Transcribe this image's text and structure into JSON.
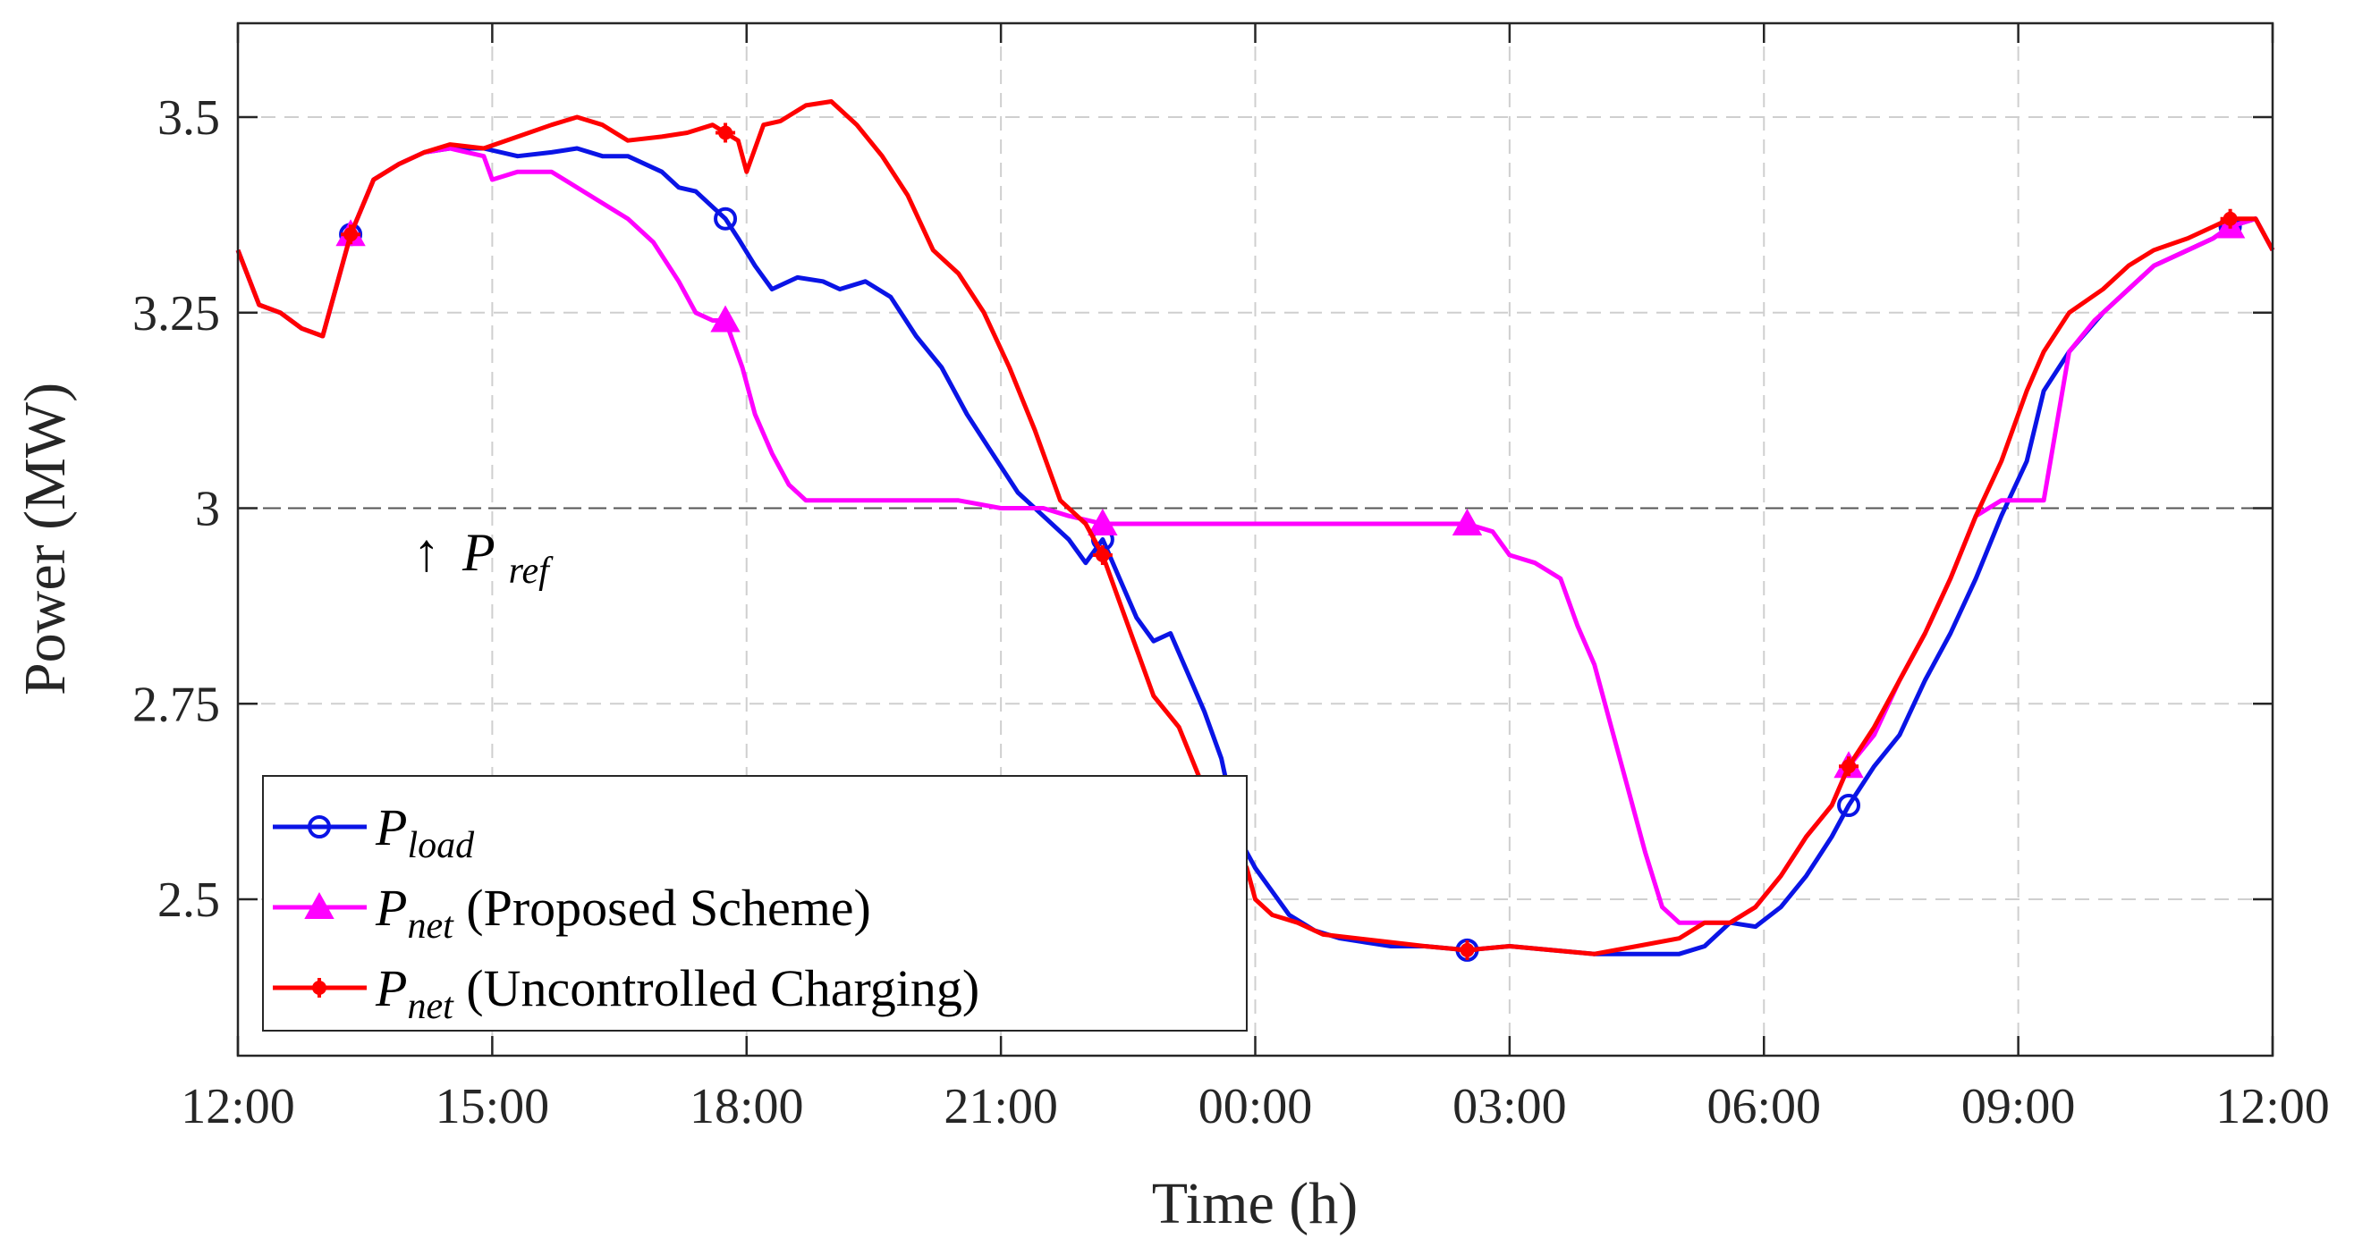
{
  "chart_data": {
    "type": "line",
    "title": "",
    "xlabel": "Time (h)",
    "ylabel": "Power (MW)",
    "xlim": [
      0,
      24
    ],
    "ylim": [
      2.3,
      3.62
    ],
    "x_ticks": [
      0,
      3,
      6,
      9,
      12,
      15,
      18,
      21,
      24
    ],
    "x_tick_labels": [
      "12:00",
      "15:00",
      "18:00",
      "21:00",
      "00:00",
      "03:00",
      "06:00",
      "09:00",
      "12:00"
    ],
    "y_ticks": [
      2.5,
      2.75,
      3,
      3.25,
      3.5
    ],
    "y_tick_labels": [
      "2.5",
      "2.75",
      "3",
      "3.25",
      "3.5"
    ],
    "grid": true,
    "legend_position": "bottom-left",
    "reference_line": {
      "y": 3.0,
      "label_arrow": "↑",
      "label_main": "P",
      "label_sub": "ref"
    },
    "series": [
      {
        "name": "P_load",
        "legend_main": "P",
        "legend_sub": "load",
        "legend_suffix": "",
        "color": "#0a14e6",
        "marker": "circle",
        "marker_x": [
          1.33,
          5.75,
          10.2,
          14.5,
          19.0,
          23.5
        ],
        "x": [
          0,
          0.25,
          0.5,
          0.75,
          1.0,
          1.33,
          1.6,
          1.9,
          2.2,
          2.5,
          2.9,
          3.3,
          3.7,
          4.0,
          4.3,
          4.6,
          5.0,
          5.2,
          5.4,
          5.6,
          5.75,
          5.9,
          6.1,
          6.3,
          6.6,
          6.9,
          7.1,
          7.4,
          7.7,
          8.0,
          8.3,
          8.6,
          8.9,
          9.2,
          9.5,
          9.8,
          10.0,
          10.2,
          10.4,
          10.6,
          10.8,
          11.0,
          11.2,
          11.4,
          11.6,
          11.8,
          12.0,
          12.2,
          12.4,
          12.7,
          13.0,
          13.3,
          13.6,
          14.0,
          14.5,
          15.0,
          15.5,
          16.0,
          16.5,
          17.0,
          17.3,
          17.6,
          17.9,
          18.2,
          18.5,
          18.8,
          19.0,
          19.3,
          19.6,
          19.9,
          20.2,
          20.5,
          20.8,
          21.1,
          21.3,
          21.6,
          22.0,
          22.3,
          22.6,
          23.0,
          23.3,
          23.5,
          23.8,
          24.0
        ],
        "y": [
          3.33,
          3.26,
          3.25,
          3.23,
          3.22,
          3.35,
          3.42,
          3.44,
          3.455,
          3.46,
          3.46,
          3.45,
          3.455,
          3.46,
          3.45,
          3.45,
          3.43,
          3.41,
          3.405,
          3.385,
          3.37,
          3.345,
          3.31,
          3.28,
          3.295,
          3.29,
          3.28,
          3.29,
          3.27,
          3.22,
          3.18,
          3.12,
          3.07,
          3.02,
          2.99,
          2.96,
          2.93,
          2.96,
          2.91,
          2.86,
          2.83,
          2.84,
          2.79,
          2.74,
          2.68,
          2.58,
          2.54,
          2.51,
          2.48,
          2.46,
          2.45,
          2.445,
          2.44,
          2.44,
          2.435,
          2.44,
          2.435,
          2.43,
          2.43,
          2.43,
          2.44,
          2.47,
          2.465,
          2.49,
          2.53,
          2.58,
          2.62,
          2.67,
          2.71,
          2.78,
          2.84,
          2.91,
          2.99,
          3.06,
          3.15,
          3.2,
          3.25,
          3.28,
          3.31,
          3.33,
          3.345,
          3.36,
          3.37,
          3.33
        ]
      },
      {
        "name": "P_net (Proposed Scheme)",
        "legend_main": "P",
        "legend_sub": "net",
        "legend_suffix": " (Proposed Scheme)",
        "color": "#ff00ff",
        "marker": "triangle",
        "marker_x": [
          1.33,
          5.75,
          10.2,
          14.5,
          19.0,
          23.5
        ],
        "x": [
          0,
          0.25,
          0.5,
          0.75,
          1.0,
          1.33,
          1.6,
          1.9,
          2.2,
          2.5,
          2.9,
          3.0,
          3.3,
          3.7,
          4.0,
          4.3,
          4.6,
          4.9,
          5.2,
          5.4,
          5.6,
          5.75,
          5.95,
          6.1,
          6.3,
          6.5,
          6.7,
          6.9,
          7.5,
          8.0,
          8.5,
          9.0,
          9.5,
          9.8,
          10.0,
          10.2,
          10.5,
          11.0,
          12.0,
          13.0,
          14.0,
          14.5,
          14.8,
          15.0,
          15.3,
          15.6,
          15.8,
          16.0,
          16.2,
          16.4,
          16.6,
          16.8,
          17.0,
          17.3,
          17.6,
          17.9,
          18.2,
          18.5,
          18.8,
          19.0,
          19.3,
          19.6,
          19.9,
          20.2,
          20.5,
          20.8,
          21.1,
          21.3,
          21.6,
          21.9,
          22.0,
          22.3,
          22.6,
          23.0,
          23.3,
          23.5,
          23.8,
          24.0
        ],
        "y": [
          3.33,
          3.26,
          3.25,
          3.23,
          3.22,
          3.35,
          3.42,
          3.44,
          3.455,
          3.46,
          3.45,
          3.42,
          3.43,
          3.43,
          3.41,
          3.39,
          3.37,
          3.34,
          3.29,
          3.25,
          3.24,
          3.24,
          3.18,
          3.12,
          3.07,
          3.03,
          3.01,
          3.01,
          3.01,
          3.01,
          3.01,
          3.0,
          3.0,
          2.99,
          2.985,
          2.98,
          2.98,
          2.98,
          2.98,
          2.98,
          2.98,
          2.98,
          2.97,
          2.94,
          2.93,
          2.91,
          2.85,
          2.8,
          2.72,
          2.64,
          2.56,
          2.49,
          2.47,
          2.47,
          2.47,
          2.49,
          2.53,
          2.58,
          2.62,
          2.67,
          2.71,
          2.78,
          2.84,
          2.91,
          2.99,
          3.01,
          3.01,
          3.01,
          3.2,
          3.24,
          3.25,
          3.28,
          3.31,
          3.33,
          3.345,
          3.36,
          3.37,
          3.33
        ]
      },
      {
        "name": "P_net (Uncontrolled Charging)",
        "legend_main": "P",
        "legend_sub": "net",
        "legend_suffix": " (Uncontrolled Charging)",
        "color": "#ff0000",
        "marker": "asterisk",
        "marker_x": [
          1.33,
          5.75,
          10.2,
          14.5,
          19.0,
          23.5
        ],
        "x": [
          0,
          0.25,
          0.5,
          0.75,
          1.0,
          1.33,
          1.6,
          1.9,
          2.2,
          2.5,
          2.9,
          3.3,
          3.7,
          4.0,
          4.3,
          4.6,
          5.0,
          5.3,
          5.6,
          5.9,
          6.0,
          6.2,
          6.4,
          6.7,
          7.0,
          7.3,
          7.6,
          7.9,
          8.2,
          8.5,
          8.8,
          9.1,
          9.4,
          9.7,
          10.0,
          10.2,
          10.4,
          10.6,
          10.8,
          11.1,
          11.4,
          11.7,
          11.9,
          12.0,
          12.2,
          12.5,
          12.8,
          13.2,
          13.6,
          14.0,
          14.5,
          15.0,
          15.5,
          16.0,
          16.5,
          17.0,
          17.3,
          17.6,
          17.9,
          18.2,
          18.5,
          18.8,
          19.0,
          19.3,
          19.6,
          19.9,
          20.2,
          20.5,
          20.8,
          21.1,
          21.3,
          21.6,
          22.0,
          22.3,
          22.6,
          23.0,
          23.3,
          23.5,
          23.8,
          24.0
        ],
        "y": [
          3.33,
          3.26,
          3.25,
          3.23,
          3.22,
          3.35,
          3.42,
          3.44,
          3.455,
          3.465,
          3.46,
          3.475,
          3.49,
          3.5,
          3.49,
          3.47,
          3.475,
          3.48,
          3.49,
          3.47,
          3.43,
          3.49,
          3.495,
          3.515,
          3.52,
          3.49,
          3.45,
          3.4,
          3.33,
          3.3,
          3.25,
          3.18,
          3.1,
          3.01,
          2.98,
          2.94,
          2.88,
          2.82,
          2.76,
          2.72,
          2.64,
          2.58,
          2.54,
          2.5,
          2.48,
          2.47,
          2.455,
          2.45,
          2.445,
          2.44,
          2.435,
          2.44,
          2.435,
          2.43,
          2.44,
          2.45,
          2.47,
          2.47,
          2.49,
          2.53,
          2.58,
          2.62,
          2.67,
          2.72,
          2.78,
          2.84,
          2.91,
          2.99,
          3.06,
          3.15,
          3.2,
          3.25,
          3.28,
          3.31,
          3.33,
          3.345,
          3.36,
          3.37,
          3.37,
          3.33
        ]
      }
    ]
  }
}
